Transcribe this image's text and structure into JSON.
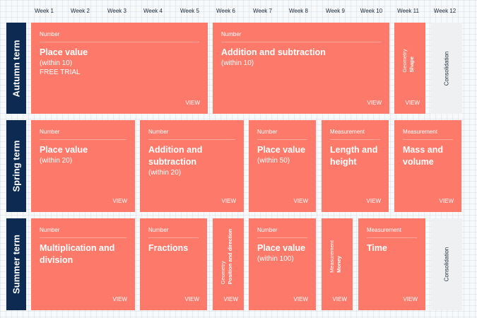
{
  "weeks": [
    "Week 1",
    "Week 2",
    "Week 3",
    "Week 4",
    "Week 5",
    "Week 6",
    "Week 7",
    "Week 8",
    "Week 9",
    "Week 10",
    "Week 11",
    "Week 12"
  ],
  "terms": {
    "autumn": "Autumn term",
    "spring": "Spring term",
    "summer": "Summer term"
  },
  "view_label": "VIEW",
  "autumn": {
    "place_value": {
      "category": "Number",
      "title": "Place value",
      "subtitle": "(within 10)",
      "note": "FREE TRIAL"
    },
    "addition": {
      "category": "Number",
      "title": "Addition and subtraction",
      "subtitle": "(within 10)"
    },
    "geometry_shape": {
      "category": "Geometry",
      "title": "Shape"
    },
    "consolidation": "Consolidation"
  },
  "spring": {
    "place_value_20": {
      "category": "Number",
      "title": "Place value",
      "subtitle": "(within 20)"
    },
    "addition_20": {
      "category": "Number",
      "title": "Addition and subtraction",
      "subtitle": "(within 20)"
    },
    "place_value_50": {
      "category": "Number",
      "title": "Place value",
      "subtitle": "(within 50)"
    },
    "length_height": {
      "category": "Measurement",
      "title": "Length and height"
    },
    "mass_volume": {
      "category": "Measurement",
      "title": "Mass and volume"
    }
  },
  "summer": {
    "multiplication": {
      "category": "Number",
      "title": "Multiplication and division"
    },
    "fractions": {
      "category": "Number",
      "title": "Fractions"
    },
    "position_direction": {
      "category": "Geometry",
      "title": "Position and direction"
    },
    "place_value_100": {
      "category": "Number",
      "title": "Place value",
      "subtitle": "(within 100)"
    },
    "money": {
      "category": "Measurement",
      "title": "Money"
    },
    "time": {
      "category": "Measurement",
      "title": "Time"
    },
    "consolidation": "Consolidation"
  },
  "colors": {
    "card": "#fd7a6b",
    "term_label": "#0d2b52",
    "consolidation": "#eef0f2"
  }
}
